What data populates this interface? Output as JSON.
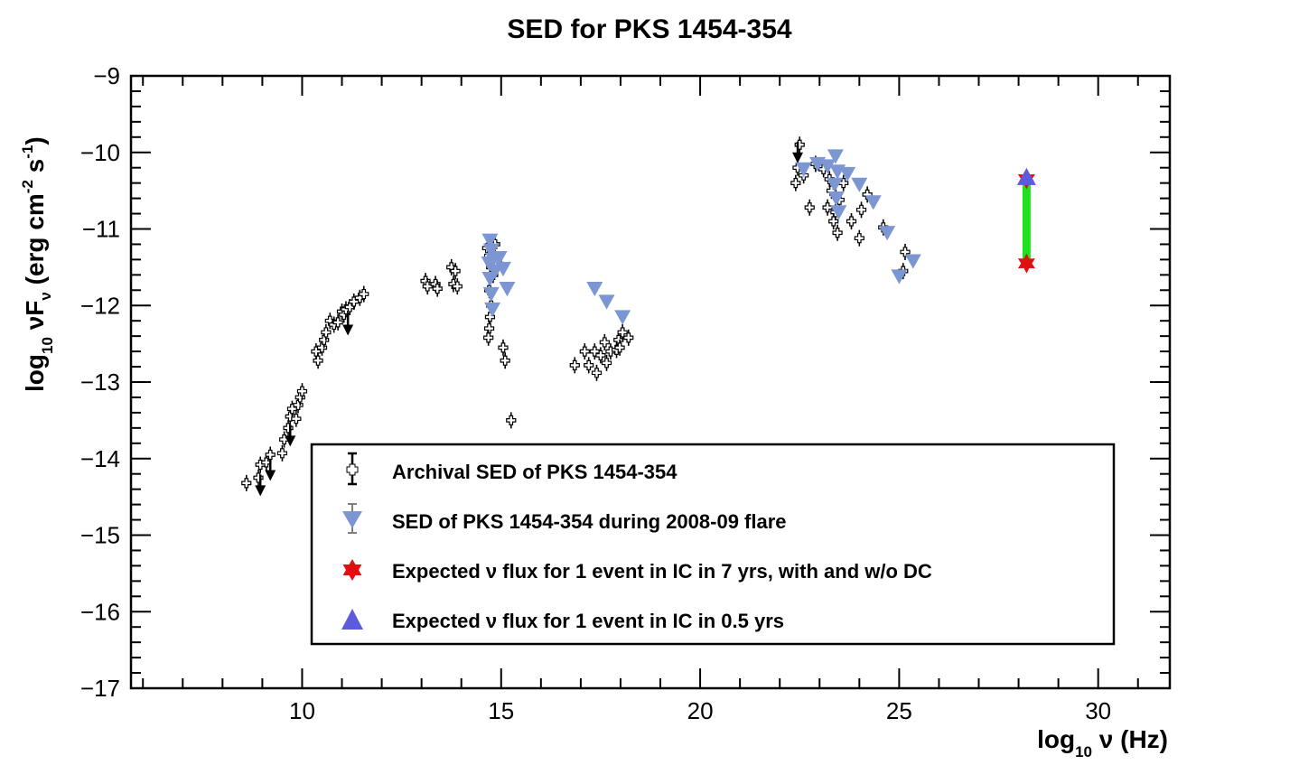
{
  "chart_data": {
    "type": "scatter",
    "title": "SED for PKS 1454-354",
    "xlabel": {
      "main": "log",
      "sub": "10",
      "rest": " ν (Hz)"
    },
    "ylabel": {
      "main": "log",
      "sub": "10",
      "nu": " νF",
      "nusub": "ν",
      "unit": " (erg cm",
      "exp1": "-2",
      "mid": " s",
      "exp2": "-1",
      "end": ")"
    },
    "xlim": [
      5.7,
      31.8
    ],
    "ylim": [
      -17,
      -9
    ],
    "xticks": [
      10,
      15,
      20,
      25,
      30
    ],
    "xtick_labels": [
      "10",
      "15",
      "20",
      "25",
      "30"
    ],
    "yticks": [
      -9,
      -10,
      -11,
      -12,
      -13,
      -14,
      -15,
      -16,
      -17
    ],
    "ytick_labels": [
      "−9",
      "−10",
      "−11",
      "−12",
      "−13",
      "−14",
      "−15",
      "−16",
      "−17"
    ],
    "legend": {
      "placement": "bottom-center",
      "entries": [
        "Archival SED of PKS 1454-354",
        "SED of PKS 1454-354 during 2008-09 flare",
        "Expected ν flux for 1 event in IC in 7 yrs, with and w/o DC",
        "Expected ν flux for 1 event in IC in 0.5 yrs"
      ]
    },
    "series": [
      {
        "name": "Archival SED of PKS 1454-354",
        "marker": "open-cross",
        "color": "#000000",
        "points": [
          [
            8.6,
            -14.32
          ],
          [
            8.9,
            -14.25
          ],
          [
            8.95,
            -14.08
          ],
          [
            9.1,
            -14.05
          ],
          [
            9.2,
            -13.95
          ],
          [
            9.5,
            -13.93
          ],
          [
            9.55,
            -13.75
          ],
          [
            9.65,
            -13.6
          ],
          [
            9.7,
            -13.45
          ],
          [
            9.75,
            -13.35
          ],
          [
            9.9,
            -13.3
          ],
          [
            9.95,
            -13.2
          ],
          [
            10.0,
            -13.12
          ],
          [
            9.85,
            -13.48
          ],
          [
            10.35,
            -12.6
          ],
          [
            10.4,
            -12.72
          ],
          [
            10.5,
            -12.55
          ],
          [
            10.55,
            -12.45
          ],
          [
            10.6,
            -12.35
          ],
          [
            10.7,
            -12.2
          ],
          [
            10.8,
            -12.25
          ],
          [
            10.9,
            -12.22
          ],
          [
            11.0,
            -12.08
          ],
          [
            11.05,
            -12.12
          ],
          [
            11.1,
            -12.05
          ],
          [
            11.2,
            -12.02
          ],
          [
            11.3,
            -11.95
          ],
          [
            11.45,
            -11.9
          ],
          [
            11.55,
            -11.85
          ],
          [
            13.1,
            -11.68
          ],
          [
            13.15,
            -11.75
          ],
          [
            13.35,
            -11.72
          ],
          [
            13.4,
            -11.78
          ],
          [
            13.75,
            -11.5
          ],
          [
            13.85,
            -11.55
          ],
          [
            13.8,
            -11.72
          ],
          [
            13.9,
            -11.75
          ],
          [
            14.65,
            -11.25
          ],
          [
            14.7,
            -11.35
          ],
          [
            14.75,
            -11.5
          ],
          [
            14.7,
            -11.8
          ],
          [
            14.75,
            -12.0
          ],
          [
            14.72,
            -12.15
          ],
          [
            14.7,
            -12.3
          ],
          [
            14.68,
            -12.42
          ],
          [
            14.8,
            -11.6
          ],
          [
            14.85,
            -11.2
          ],
          [
            14.9,
            -11.45
          ],
          [
            15.05,
            -12.55
          ],
          [
            15.1,
            -12.72
          ],
          [
            15.25,
            -13.5
          ],
          [
            16.85,
            -12.78
          ],
          [
            17.1,
            -12.6
          ],
          [
            17.2,
            -12.78
          ],
          [
            17.35,
            -12.6
          ],
          [
            17.4,
            -12.88
          ],
          [
            17.5,
            -12.65
          ],
          [
            17.6,
            -12.48
          ],
          [
            17.65,
            -12.75
          ],
          [
            17.75,
            -12.6
          ],
          [
            17.9,
            -12.58
          ],
          [
            17.95,
            -12.45
          ],
          [
            18.05,
            -12.35
          ],
          [
            18.2,
            -12.42
          ],
          [
            17.98,
            -12.55
          ],
          [
            22.4,
            -10.4
          ],
          [
            22.45,
            -10.2
          ],
          [
            22.5,
            -9.9
          ],
          [
            22.6,
            -10.3
          ],
          [
            22.75,
            -10.72
          ],
          [
            22.9,
            -10.15
          ],
          [
            23.1,
            -10.22
          ],
          [
            23.2,
            -10.72
          ],
          [
            23.25,
            -10.35
          ],
          [
            23.3,
            -10.5
          ],
          [
            23.35,
            -10.9
          ],
          [
            23.4,
            -10.78
          ],
          [
            23.45,
            -11.05
          ],
          [
            23.5,
            -10.62
          ],
          [
            23.6,
            -10.4
          ],
          [
            23.8,
            -10.9
          ],
          [
            24.0,
            -11.12
          ],
          [
            24.05,
            -10.75
          ],
          [
            24.2,
            -10.55
          ],
          [
            24.6,
            -10.98
          ],
          [
            25.1,
            -11.55
          ],
          [
            25.15,
            -11.3
          ]
        ],
        "upper_limits": [
          [
            8.95,
            -14.35
          ],
          [
            9.2,
            -14.15
          ],
          [
            9.7,
            -13.7
          ],
          [
            11.15,
            -12.25
          ],
          [
            22.45,
            -10.0
          ]
        ]
      },
      {
        "name": "SED of PKS 1454-354 during 2008-09 flare",
        "marker": "triangle-down",
        "color": "#7b96d2",
        "points": [
          [
            14.72,
            -11.15
          ],
          [
            14.75,
            -11.28
          ],
          [
            14.8,
            -11.4
          ],
          [
            14.85,
            -11.55
          ],
          [
            14.95,
            -11.38
          ],
          [
            15.05,
            -11.52
          ],
          [
            15.15,
            -11.78
          ],
          [
            14.7,
            -11.45
          ],
          [
            14.72,
            -11.65
          ],
          [
            14.75,
            -11.85
          ],
          [
            14.78,
            -12.05
          ],
          [
            17.35,
            -11.78
          ],
          [
            17.65,
            -11.95
          ],
          [
            18.05,
            -12.15
          ],
          [
            22.6,
            -10.22
          ],
          [
            22.95,
            -10.15
          ],
          [
            23.2,
            -10.18
          ],
          [
            23.4,
            -10.05
          ],
          [
            23.45,
            -10.25
          ],
          [
            23.38,
            -10.42
          ],
          [
            23.42,
            -10.6
          ],
          [
            23.48,
            -10.78
          ],
          [
            23.7,
            -10.28
          ],
          [
            24.0,
            -10.42
          ],
          [
            24.35,
            -10.65
          ],
          [
            24.7,
            -11.05
          ],
          [
            25.0,
            -11.62
          ],
          [
            25.35,
            -11.42
          ]
        ]
      },
      {
        "name": "Expected ν flux for 1 event in IC in 7 yrs, with and w/o DC",
        "marker": "star",
        "color": "#e01010",
        "points": [
          [
            28.2,
            -10.35
          ],
          [
            28.2,
            -11.45
          ]
        ]
      },
      {
        "name": "Expected ν flux for 1 event in IC in 0.5 yrs",
        "marker": "triangle-up",
        "color": "#5b5bdc",
        "points": [
          [
            28.2,
            -10.32
          ]
        ]
      }
    ],
    "band": {
      "name": "expected-flux-range",
      "x": 28.2,
      "y_low": -11.45,
      "y_high": -10.35,
      "color": "#20e020"
    }
  }
}
